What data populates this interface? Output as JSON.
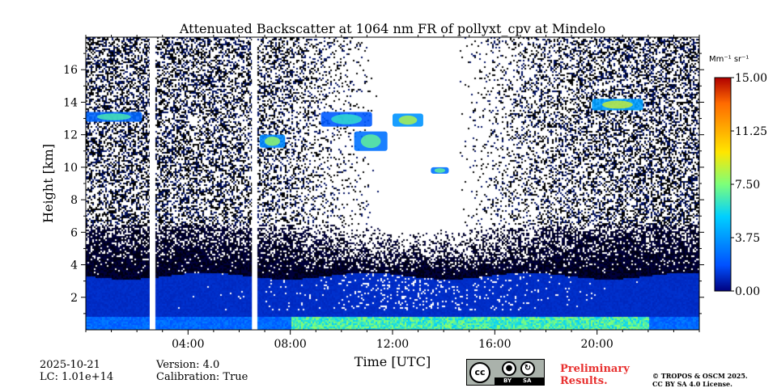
{
  "chart_data": {
    "type": "heatmap",
    "title": "Attenuated Backscatter at 1064 nm FR of pollyxt_cpv at Mindelo",
    "xlabel": "Time [UTC]",
    "ylabel": "Height [km]",
    "xlim": [
      0,
      24
    ],
    "ylim": [
      0,
      18
    ],
    "x_ticks": [
      {
        "value": 4,
        "label": "04:00"
      },
      {
        "value": 8,
        "label": "08:00"
      },
      {
        "value": 12,
        "label": "12:00"
      },
      {
        "value": 16,
        "label": "16:00"
      },
      {
        "value": 20,
        "label": "20:00"
      }
    ],
    "y_ticks": [
      {
        "value": 2,
        "label": "2"
      },
      {
        "value": 4,
        "label": "4"
      },
      {
        "value": 6,
        "label": "6"
      },
      {
        "value": 8,
        "label": "8"
      },
      {
        "value": 10,
        "label": "10"
      },
      {
        "value": 12,
        "label": "12"
      },
      {
        "value": 14,
        "label": "14"
      },
      {
        "value": 16,
        "label": "16"
      }
    ],
    "colorbar": {
      "unit_label": "Mm⁻¹ sr⁻¹",
      "range": [
        0,
        15
      ],
      "ticks": [
        {
          "value": 0,
          "label": "0.00"
        },
        {
          "value": 3.75,
          "label": "3.75"
        },
        {
          "value": 7.5,
          "label": "7.50"
        },
        {
          "value": 11.25,
          "label": "11.25"
        },
        {
          "value": 15,
          "label": "15.00"
        }
      ],
      "colormap": [
        "#00007f",
        "#0050ff",
        "#00d0ff",
        "#7dff7a",
        "#ffe600",
        "#ff6a00",
        "#b00000"
      ]
    },
    "data_gaps_utc": [
      [
        2.5,
        2.7
      ],
      [
        6.5,
        6.65
      ]
    ],
    "cloud_layers": [
      {
        "t_start": 0.0,
        "t_end": 2.2,
        "h_bottom": 12.8,
        "h_top": 13.4,
        "value": 6.5
      },
      {
        "t_start": 6.8,
        "t_end": 7.8,
        "h_bottom": 11.2,
        "h_top": 12.0,
        "value": 8.0
      },
      {
        "t_start": 9.2,
        "t_end": 11.2,
        "h_bottom": 12.5,
        "h_top": 13.4,
        "value": 6.0
      },
      {
        "t_start": 10.5,
        "t_end": 11.8,
        "h_bottom": 11.0,
        "h_top": 12.2,
        "value": 7.0
      },
      {
        "t_start": 12.0,
        "t_end": 13.2,
        "h_bottom": 12.5,
        "h_top": 13.3,
        "value": 8.5
      },
      {
        "t_start": 13.5,
        "t_end": 14.2,
        "h_bottom": 9.6,
        "h_top": 10.0,
        "value": 7.0
      },
      {
        "t_start": 19.8,
        "t_end": 21.8,
        "h_bottom": 13.5,
        "h_top": 14.2,
        "value": 9.0
      }
    ],
    "boundary_layer": {
      "top_km": 3.3,
      "surface_peak_km": 0.5,
      "surface_peak_value": 8.0
    },
    "grid": false
  },
  "footer": {
    "date": "2025-10-21",
    "lc": "LC: 1.01e+14",
    "version": "Version: 4.0",
    "calibration": "Calibration: True",
    "preliminary_line1": "Preliminary",
    "preliminary_line2": "Results.",
    "license_line1": "© TROPOS & OSCM 2025.",
    "license_line2": "CC BY SA 4.0 License.",
    "cc_badge_text": "cc",
    "cc_by": "BY",
    "cc_sa": "SA"
  }
}
